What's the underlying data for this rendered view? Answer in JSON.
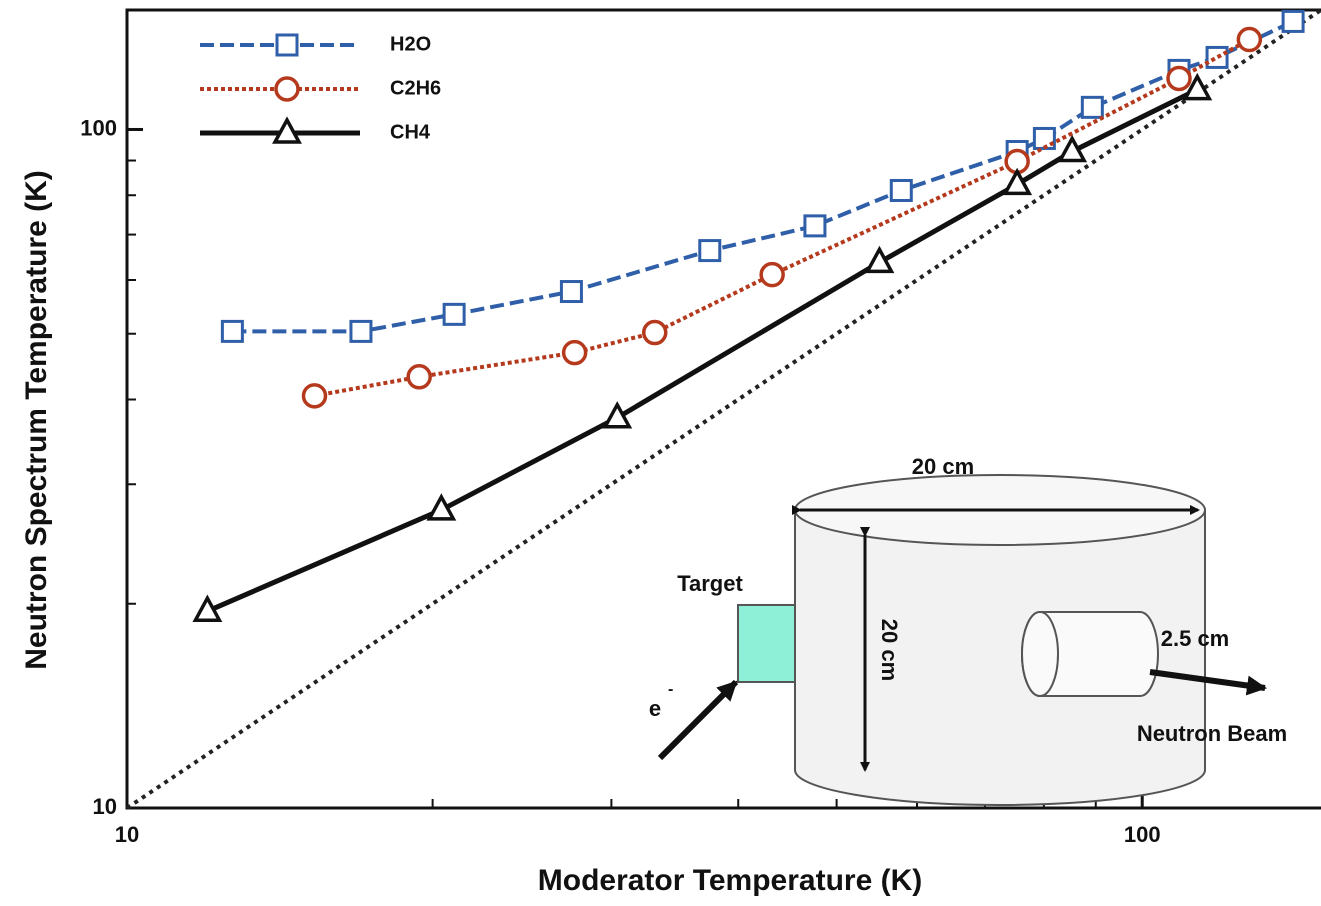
{
  "chart_data": {
    "type": "line",
    "x_label": "Moderator Temperature (K)",
    "y_label": "Neutron Spectrum Temperature (K)",
    "log_x": true,
    "log_y": true,
    "xlim": [
      10,
      150
    ],
    "ylim": [
      10,
      150
    ],
    "xticks": [
      10,
      100
    ],
    "yticks": [
      10,
      100
    ],
    "xminor": [
      20,
      30,
      40,
      50,
      60,
      70,
      80,
      90
    ],
    "yminor": [
      20,
      30,
      40,
      50,
      60,
      70,
      80,
      90
    ],
    "legend": "upper left",
    "series": [
      {
        "name": "H2O",
        "color": "#2f5fa8",
        "marker": "square",
        "dash": "dashed",
        "x": [
          12.7,
          17.0,
          21.0,
          27.4,
          37.5,
          47.6,
          57.9,
          75.3,
          80.1,
          89.3,
          108.7,
          118.5,
          140.8
        ],
        "values": [
          50.4,
          50.4,
          53.4,
          57.7,
          66.3,
          72.1,
          81.3,
          92.8,
          97.0,
          107.8,
          122.2,
          127.7,
          144.3
        ]
      },
      {
        "name": "C2H6",
        "color": "#b5391c",
        "marker": "circle",
        "dash": "dotted",
        "x": [
          15.3,
          19.4,
          27.6,
          33.1,
          43.2,
          75.3,
          108.7,
          127.5
        ],
        "values": [
          40.5,
          43.2,
          46.9,
          50.2,
          61.1,
          89.7,
          118.9,
          135.7
        ]
      },
      {
        "name": "CH4",
        "color": "#111111",
        "marker": "triangle",
        "dash": "solid",
        "x": [
          12.0,
          20.4,
          30.4,
          55.1,
          75.3,
          85.3,
          113.3
        ],
        "values": [
          19.5,
          27.5,
          37.6,
          63.7,
          83.0,
          92.8,
          114.5
        ]
      }
    ],
    "diagonal": {
      "x": [
        10,
        150
      ],
      "values": [
        10,
        150
      ],
      "color": "#222222"
    },
    "inset": {
      "diameter": "20 cm",
      "height": "20 cm",
      "target": "Target",
      "beam_particle": "e",
      "beam_charge": "-",
      "port": "2.5 cm",
      "beam": "Neutron Beam"
    }
  }
}
